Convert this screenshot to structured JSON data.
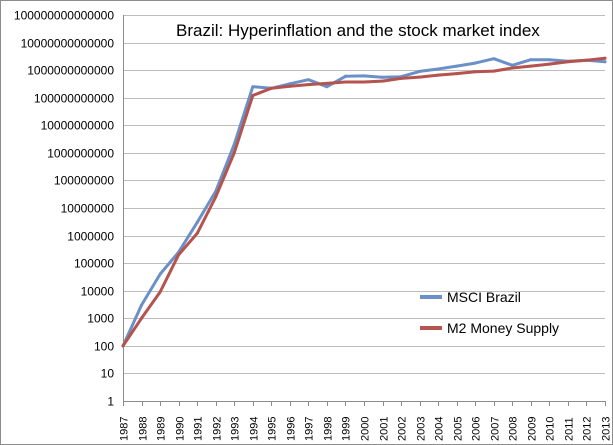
{
  "chart_data": {
    "type": "line",
    "title": "Brazil: Hyperinflation and the stock market index",
    "xlabel": "",
    "ylabel": "",
    "yscale": "log",
    "ylim": [
      1,
      100000000000000
    ],
    "grid": true,
    "legend_position": "bottom-right",
    "y_ticks": [
      "1",
      "10",
      "100",
      "1000",
      "10000",
      "100000",
      "1000000",
      "10000000",
      "100000000",
      "1000000000",
      "10000000000",
      "100000000000",
      "1000000000000",
      "10000000000000",
      "100000000000000"
    ],
    "x": [
      "1987",
      "1988",
      "1989",
      "1990",
      "1991",
      "1992",
      "1993",
      "1994",
      "1995",
      "1996",
      "1997",
      "1998",
      "1999",
      "2000",
      "2001",
      "2002",
      "2003",
      "2004",
      "2005",
      "2006",
      "2007",
      "2008",
      "2009",
      "2010",
      "2011",
      "2012",
      "2013"
    ],
    "series": [
      {
        "name": "MSCI Brazil",
        "color": "#6b8fc7",
        "values": [
          100,
          3000,
          40000,
          250000,
          3000000,
          40000000,
          2000000000,
          250000000000,
          220000000000,
          320000000000,
          450000000000,
          250000000000,
          600000000000,
          620000000000,
          550000000000,
          580000000000,
          900000000000,
          1100000000000,
          1400000000000,
          1800000000000,
          2600000000000,
          1500000000000,
          2400000000000,
          2400000000000,
          2100000000000,
          2300000000000,
          2000000000000
        ]
      },
      {
        "name": "M2 Money Supply",
        "color": "#b5534e",
        "values": [
          100,
          1000,
          9000,
          200000,
          1200000,
          25000000,
          1000000000,
          120000000000,
          220000000000,
          260000000000,
          300000000000,
          330000000000,
          370000000000,
          370000000000,
          400000000000,
          500000000000,
          560000000000,
          660000000000,
          750000000000,
          880000000000,
          920000000000,
          1200000000000,
          1400000000000,
          1650000000000,
          2000000000000,
          2300000000000,
          2700000000000
        ]
      }
    ]
  }
}
